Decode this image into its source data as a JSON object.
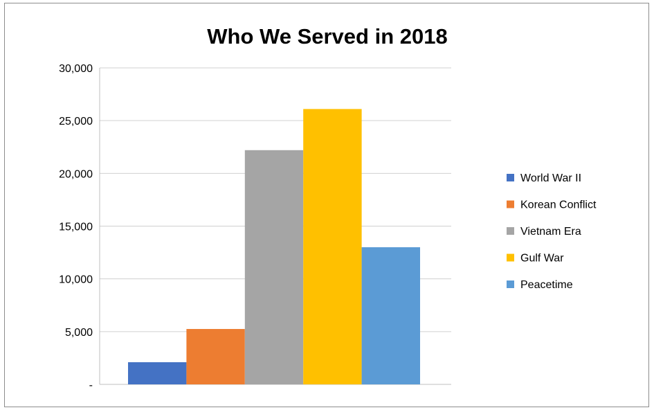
{
  "chart_data": {
    "type": "bar",
    "title": "Who We Served in 2018",
    "xlabel": "",
    "ylabel": "",
    "ylim": [
      0,
      30000
    ],
    "yticks": [
      {
        "value": 0,
        "label": "-"
      },
      {
        "value": 5000,
        "label": "5,000"
      },
      {
        "value": 10000,
        "label": "10,000"
      },
      {
        "value": 15000,
        "label": "15,000"
      },
      {
        "value": 20000,
        "label": "20,000"
      },
      {
        "value": 25000,
        "label": "25,000"
      },
      {
        "value": 30000,
        "label": "30,000"
      }
    ],
    "grid": true,
    "legend_position": "right",
    "series": [
      {
        "name": "World War II",
        "value": 2100,
        "color": "#4472C4"
      },
      {
        "name": "Korean Conflict",
        "value": 5250,
        "color": "#ED7D31"
      },
      {
        "name": "Vietnam Era",
        "value": 22200,
        "color": "#A5A5A5"
      },
      {
        "name": "Gulf War",
        "value": 26100,
        "color": "#FFC000"
      },
      {
        "name": "Peacetime",
        "value": 13000,
        "color": "#5B9BD5"
      }
    ]
  }
}
